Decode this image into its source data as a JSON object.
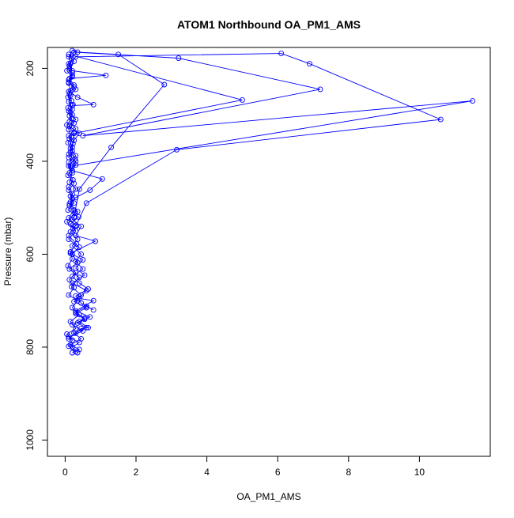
{
  "chart_data": {
    "type": "scatter",
    "title": "ATOM1 Northbound OA_PM1_AMS",
    "xlabel": "OA_PM1_AMS",
    "ylabel": "Pressure (mbar)",
    "x_ticks": [
      0,
      2,
      4,
      6,
      8,
      10
    ],
    "y_ticks": [
      200,
      400,
      600,
      800,
      1000
    ],
    "xlim": [
      -0.5,
      12.0
    ],
    "ylim": [
      1035,
      155
    ],
    "y_reversed": true,
    "grid": false,
    "legend": "none",
    "color": "#0000ff",
    "series": [
      {
        "values": [
          [
            0.3,
            810
          ],
          [
            0.1,
            798
          ],
          [
            0.2,
            785
          ],
          [
            0.05,
            772
          ],
          [
            0.3,
            760
          ],
          [
            0.15,
            745
          ],
          [
            0.4,
            730
          ],
          [
            0.2,
            715
          ],
          [
            0.35,
            700
          ],
          [
            0.1,
            688
          ],
          [
            0.25,
            672
          ],
          [
            0.12,
            655
          ],
          [
            0.3,
            640
          ],
          [
            0.08,
            625
          ],
          [
            0.2,
            610
          ],
          [
            0.15,
            595
          ],
          [
            0.32,
            578
          ],
          [
            0.1,
            560
          ],
          [
            0.22,
            545
          ],
          [
            0.05,
            530
          ],
          [
            0.28,
            512
          ],
          [
            0.12,
            496
          ],
          [
            0.2,
            480
          ],
          [
            0.1,
            462
          ],
          [
            0.25,
            448
          ],
          [
            0.08,
            430
          ],
          [
            0.18,
            415
          ],
          [
            0.3,
            400
          ],
          [
            0.1,
            385
          ],
          [
            0.2,
            370
          ],
          [
            0.12,
            352
          ],
          [
            0.25,
            338
          ],
          [
            0.05,
            322
          ],
          [
            0.18,
            308
          ],
          [
            0.1,
            292
          ],
          [
            0.22,
            278
          ],
          [
            0.08,
            262
          ],
          [
            0.15,
            248
          ],
          [
            0.1,
            232
          ],
          [
            0.2,
            218
          ],
          [
            0.05,
            205
          ],
          [
            0.15,
            190
          ],
          [
            0.1,
            175
          ],
          [
            0.2,
            162
          ],
          [
            0.35,
            165
          ],
          [
            1.5,
            170
          ],
          [
            2.8,
            235
          ],
          [
            1.3,
            370
          ],
          [
            0.4,
            460
          ],
          [
            0.25,
            520
          ]
        ]
      },
      {
        "values": [
          [
            0.35,
            812
          ],
          [
            0.2,
            800
          ],
          [
            0.4,
            790
          ],
          [
            0.1,
            778
          ],
          [
            0.5,
            765
          ],
          [
            0.2,
            752
          ],
          [
            0.55,
            740
          ],
          [
            0.3,
            728
          ],
          [
            0.6,
            715
          ],
          [
            0.25,
            702
          ],
          [
            0.45,
            688
          ],
          [
            0.18,
            670
          ],
          [
            0.4,
            650
          ],
          [
            0.12,
            632
          ],
          [
            0.35,
            618
          ],
          [
            0.2,
            600
          ],
          [
            0.4,
            585
          ],
          [
            0.1,
            568
          ],
          [
            0.3,
            550
          ],
          [
            0.15,
            535
          ],
          [
            0.38,
            520
          ],
          [
            0.08,
            505
          ],
          [
            0.25,
            490
          ],
          [
            0.15,
            475
          ],
          [
            0.3,
            460
          ],
          [
            0.12,
            445
          ],
          [
            0.2,
            425
          ],
          [
            0.1,
            410
          ],
          [
            0.28,
            395
          ],
          [
            0.15,
            380
          ],
          [
            0.22,
            362
          ],
          [
            0.1,
            345
          ],
          [
            0.3,
            330
          ],
          [
            0.12,
            315
          ],
          [
            0.2,
            300
          ],
          [
            0.08,
            285
          ],
          [
            0.18,
            270
          ],
          [
            0.12,
            255
          ],
          [
            0.25,
            240
          ],
          [
            0.1,
            225
          ],
          [
            0.2,
            210
          ],
          [
            0.12,
            195
          ],
          [
            0.18,
            180
          ],
          [
            0.25,
            165
          ],
          [
            3.2,
            178
          ],
          [
            7.2,
            245
          ],
          [
            0.5,
            345
          ],
          [
            11.5,
            270
          ],
          [
            0.2,
            410
          ]
        ]
      },
      {
        "values": [
          [
            0.2,
            812
          ],
          [
            0.4,
            805
          ],
          [
            0.15,
            795
          ],
          [
            0.45,
            782
          ],
          [
            0.25,
            770
          ],
          [
            0.6,
            758
          ],
          [
            0.35,
            748
          ],
          [
            0.7,
            735
          ],
          [
            0.3,
            722
          ],
          [
            0.8,
            700
          ],
          [
            0.4,
            695
          ],
          [
            0.6,
            678
          ],
          [
            0.2,
            662
          ],
          [
            0.55,
            645
          ],
          [
            0.3,
            630
          ],
          [
            0.5,
            612
          ],
          [
            0.15,
            598
          ],
          [
            0.85,
            572
          ],
          [
            0.3,
            560
          ],
          [
            0.45,
            540
          ],
          [
            0.2,
            525
          ],
          [
            0.35,
            508
          ],
          [
            0.12,
            492
          ],
          [
            0.3,
            478
          ],
          [
            0.7,
            462
          ],
          [
            1.05,
            438
          ],
          [
            0.2,
            420
          ],
          [
            0.1,
            402
          ],
          [
            0.3,
            388
          ],
          [
            0.15,
            372
          ],
          [
            0.25,
            355
          ],
          [
            0.4,
            340
          ],
          [
            0.12,
            325
          ],
          [
            0.3,
            310
          ],
          [
            0.15,
            295
          ],
          [
            0.2,
            280
          ],
          [
            0.8,
            278
          ],
          [
            0.35,
            262
          ],
          [
            0.1,
            250
          ],
          [
            0.25,
            236
          ],
          [
            0.12,
            222
          ],
          [
            1.15,
            215
          ],
          [
            0.2,
            205
          ],
          [
            0.1,
            190
          ],
          [
            0.3,
            175
          ],
          [
            6.1,
            168
          ],
          [
            6.9,
            190
          ],
          [
            10.6,
            310
          ],
          [
            3.15,
            375
          ],
          [
            0.6,
            490
          ],
          [
            0.3,
            540
          ]
        ]
      },
      {
        "values": [
          [
            0.1,
            782
          ],
          [
            0.3,
            770
          ],
          [
            0.45,
            760
          ],
          [
            0.65,
            758
          ],
          [
            0.4,
            745
          ],
          [
            0.55,
            738
          ],
          [
            0.3,
            725
          ],
          [
            0.6,
            712
          ],
          [
            0.8,
            720
          ],
          [
            0.45,
            705
          ],
          [
            0.3,
            690
          ],
          [
            0.65,
            675
          ],
          [
            0.4,
            662
          ],
          [
            0.2,
            648
          ],
          [
            0.5,
            632
          ],
          [
            0.3,
            615
          ],
          [
            0.45,
            600
          ],
          [
            0.2,
            582
          ],
          [
            0.35,
            568
          ],
          [
            0.15,
            552
          ],
          [
            0.3,
            538
          ],
          [
            0.1,
            522
          ],
          [
            0.25,
            505
          ],
          [
            0.15,
            488
          ],
          [
            0.2,
            470
          ],
          [
            0.1,
            455
          ],
          [
            0.22,
            440
          ],
          [
            0.12,
            425
          ],
          [
            0.3,
            408
          ],
          [
            0.1,
            392
          ],
          [
            0.2,
            378
          ],
          [
            0.08,
            360
          ],
          [
            0.18,
            348
          ],
          [
            0.1,
            332
          ],
          [
            0.25,
            318
          ],
          [
            0.12,
            302
          ],
          [
            0.2,
            288
          ],
          [
            0.1,
            272
          ],
          [
            0.15,
            258
          ],
          [
            0.3,
            245
          ],
          [
            0.1,
            230
          ],
          [
            0.2,
            215
          ],
          [
            0.12,
            200
          ],
          [
            0.25,
            185
          ],
          [
            0.1,
            170
          ],
          [
            5.0,
            268
          ],
          [
            0.25,
            340
          ],
          [
            0.15,
            410
          ]
        ]
      }
    ]
  }
}
